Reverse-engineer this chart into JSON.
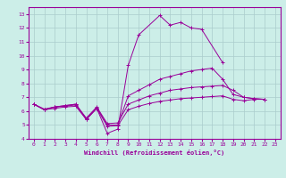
{
  "xlabel": "Windchill (Refroidissement éolien,°C)",
  "bg_color": "#cceee8",
  "line_color": "#990099",
  "grid_color": "#aacccc",
  "xlim": [
    -0.5,
    23.5
  ],
  "ylim": [
    4,
    13.5
  ],
  "xticks": [
    0,
    1,
    2,
    3,
    4,
    5,
    6,
    7,
    8,
    9,
    10,
    11,
    12,
    13,
    14,
    15,
    16,
    17,
    18,
    19,
    20,
    21,
    22,
    23
  ],
  "yticks": [
    4,
    5,
    6,
    7,
    8,
    9,
    10,
    11,
    12,
    13
  ],
  "series": [
    [
      6.5,
      6.1,
      6.3,
      6.4,
      6.5,
      5.4,
      6.2,
      4.4,
      4.7,
      9.3,
      11.5,
      null,
      12.9,
      12.2,
      12.4,
      12.0,
      11.9,
      null,
      9.5,
      null,
      null,
      null,
      null,
      null
    ],
    [
      6.5,
      6.1,
      6.3,
      6.35,
      6.45,
      5.45,
      6.25,
      5.0,
      5.0,
      7.1,
      7.5,
      7.9,
      8.3,
      8.5,
      8.7,
      8.9,
      9.0,
      9.1,
      8.3,
      7.2,
      7.0,
      6.9,
      6.85,
      null
    ],
    [
      6.5,
      6.15,
      6.3,
      6.4,
      6.5,
      5.5,
      6.3,
      5.1,
      5.15,
      6.5,
      6.8,
      7.1,
      7.3,
      7.5,
      7.6,
      7.7,
      7.75,
      7.8,
      7.85,
      7.5,
      7.0,
      6.9,
      6.85,
      null
    ],
    [
      6.5,
      6.1,
      6.2,
      6.3,
      6.35,
      5.4,
      6.2,
      4.9,
      4.95,
      6.1,
      6.35,
      6.55,
      6.7,
      6.8,
      6.9,
      6.95,
      7.0,
      7.05,
      7.1,
      6.85,
      6.75,
      6.85,
      6.85,
      null
    ]
  ]
}
